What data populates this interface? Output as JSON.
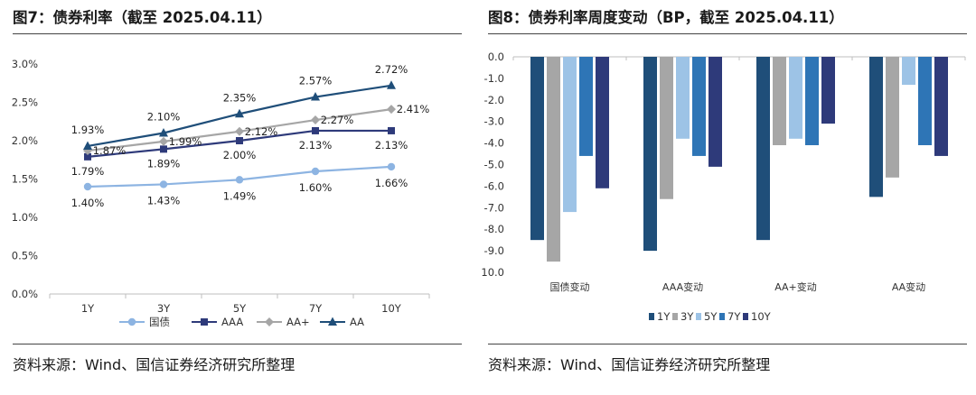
{
  "left": {
    "title": "图7：债券利率（截至 2025.04.11）",
    "source": "资料来源：Wind、国信证券经济研究所整理"
  },
  "right": {
    "title": "图8：债券利率周度变动（BP，截至 2025.04.11）",
    "source": "资料来源：Wind、国信证券经济研究所整理"
  },
  "chart_data": [
    {
      "type": "line",
      "title": "图7：债券利率（截至 2025.04.11）",
      "categories": [
        "1Y",
        "3Y",
        "5Y",
        "7Y",
        "10Y"
      ],
      "y_tick_labels": [
        "0.0%",
        "0.5%",
        "1.0%",
        "1.5%",
        "2.0%",
        "2.5%",
        "3.0%"
      ],
      "ylim": [
        0,
        3.0
      ],
      "grid": false,
      "legend_position": "bottom",
      "series": [
        {
          "name": "国债",
          "color": "#8db4e2",
          "marker": "circle",
          "values": [
            1.4,
            1.43,
            1.49,
            1.6,
            1.66
          ],
          "labels": [
            "1.40%",
            "1.43%",
            "1.49%",
            "1.60%",
            "1.66%"
          ]
        },
        {
          "name": "AAA",
          "color": "#2e3a7a",
          "marker": "square",
          "values": [
            1.79,
            1.89,
            2.0,
            2.13,
            2.13
          ],
          "labels": [
            "1.79%",
            "1.89%",
            "2.00%",
            "2.13%",
            "2.13%"
          ]
        },
        {
          "name": "AA+",
          "color": "#a6a6a6",
          "marker": "diamond",
          "values": [
            1.87,
            1.99,
            2.12,
            2.27,
            2.41
          ],
          "labels": [
            "1.87%",
            "1.99%",
            "2.12%",
            "2.27%",
            "2.41%"
          ]
        },
        {
          "name": "AA",
          "color": "#1f4e79",
          "marker": "triangle",
          "values": [
            1.93,
            2.1,
            2.35,
            2.57,
            2.72
          ],
          "labels": [
            "1.93%",
            "2.10%",
            "2.35%",
            "2.57%",
            "2.72%"
          ]
        }
      ]
    },
    {
      "type": "bar",
      "title": "图8：债券利率周度变动（BP，截至 2025.04.11）",
      "categories": [
        "国债变动",
        "AAA变动",
        "AA+变动",
        "AA变动"
      ],
      "y_tick_labels": [
        "0.0",
        "-1.0",
        "-2.0",
        "-3.0",
        "-4.0",
        "-5.0",
        "-6.0",
        "-7.0",
        "-8.0",
        "-9.0",
        "10.0"
      ],
      "ylim": [
        -10,
        0
      ],
      "grid": false,
      "legend_position": "bottom",
      "series": [
        {
          "name": "1Y",
          "color": "#1f4e79",
          "values": [
            -8.5,
            -9.0,
            -8.5,
            -6.5
          ]
        },
        {
          "name": "3Y",
          "color": "#a6a6a6",
          "values": [
            -9.5,
            -6.6,
            -4.1,
            -5.6
          ]
        },
        {
          "name": "5Y",
          "color": "#9dc3e6",
          "values": [
            -7.2,
            -3.8,
            -3.8,
            -1.3
          ]
        },
        {
          "name": "7Y",
          "color": "#2e75b6",
          "values": [
            -4.6,
            -4.6,
            -4.1,
            -4.1
          ]
        },
        {
          "name": "10Y",
          "color": "#2e3a7a",
          "values": [
            -6.1,
            -5.1,
            -3.1,
            -4.6
          ]
        }
      ]
    }
  ]
}
